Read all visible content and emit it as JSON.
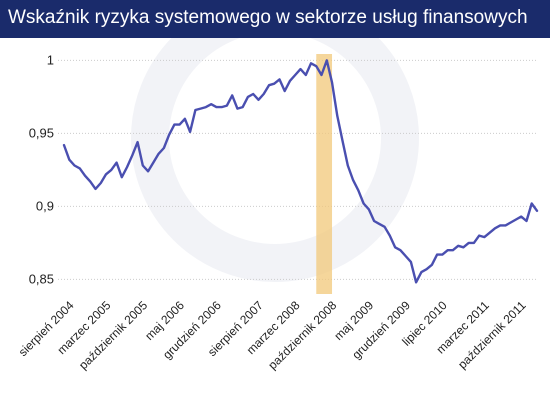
{
  "title": "Wskaźnik ryzyka systemowego w sektorze usług finansowych",
  "colors": {
    "header_bg": "#1a2b6b",
    "line": "#4a4fb0",
    "highlight": "#f2c87a",
    "grid": "#cccccc"
  },
  "chart_data": {
    "type": "line",
    "title": "Wskaźnik ryzyka systemowego w sektorze usług finansowych",
    "xlabel": "",
    "ylabel": "",
    "ylim": [
      0.84,
      1.003
    ],
    "y_ticks": [
      0.85,
      0.9,
      0.95,
      1
    ],
    "y_tick_labels": [
      "0,85",
      "0,9",
      "0,95",
      "1"
    ],
    "x_tick_labels": [
      "sierpień 2004",
      "marzec 2005",
      "październik 2005",
      "maj 2006",
      "grudzień 2006",
      "sierpień 2007",
      "marzec 2008",
      "październik 2008",
      "maj 2009",
      "grudzień 2009",
      "lipiec 2010",
      "marzec 2011",
      "październik 2011"
    ],
    "x_tick_dates": [
      "2004-08",
      "2005-03",
      "2005-10",
      "2006-05",
      "2006-12",
      "2007-08",
      "2008-03",
      "2008-10",
      "2009-05",
      "2009-12",
      "2010-07",
      "2011-03",
      "2011-10"
    ],
    "highlight_range": [
      "2008-06",
      "2008-09"
    ],
    "grid": true,
    "legend": "none",
    "series": [
      {
        "dates": [
          "2004-06",
          "2004-07",
          "2004-08",
          "2004-09",
          "2004-10",
          "2004-11",
          "2004-12",
          "2005-01",
          "2005-02",
          "2005-03",
          "2005-04",
          "2005-05",
          "2005-06",
          "2005-07",
          "2005-08",
          "2005-09",
          "2005-10",
          "2005-11",
          "2005-12",
          "2006-01",
          "2006-02",
          "2006-03",
          "2006-04",
          "2006-05",
          "2006-06",
          "2006-07",
          "2006-08",
          "2006-09",
          "2006-10",
          "2006-11",
          "2006-12",
          "2007-01",
          "2007-02",
          "2007-03",
          "2007-04",
          "2007-05",
          "2007-06",
          "2007-07",
          "2007-08",
          "2007-09",
          "2007-10",
          "2007-11",
          "2007-12",
          "2008-01",
          "2008-02",
          "2008-03",
          "2008-04",
          "2008-05",
          "2008-06",
          "2008-07",
          "2008-08",
          "2008-09",
          "2008-10",
          "2008-11",
          "2008-12",
          "2009-01",
          "2009-02",
          "2009-03",
          "2009-04",
          "2009-05",
          "2009-06",
          "2009-07",
          "2009-08",
          "2009-09",
          "2009-10",
          "2009-11",
          "2009-12",
          "2010-01",
          "2010-02",
          "2010-03",
          "2010-04",
          "2010-05",
          "2010-06",
          "2010-07",
          "2010-08",
          "2010-09",
          "2010-10",
          "2010-11",
          "2010-12",
          "2011-01",
          "2011-02",
          "2011-03",
          "2011-04",
          "2011-05",
          "2011-06",
          "2011-07",
          "2011-08",
          "2011-09",
          "2011-10",
          "2011-11",
          "2011-12"
        ],
        "values": [
          0.942,
          0.932,
          0.928,
          0.926,
          0.921,
          0.917,
          0.912,
          0.916,
          0.922,
          0.925,
          0.93,
          0.92,
          0.927,
          0.935,
          0.944,
          0.928,
          0.924,
          0.93,
          0.936,
          0.94,
          0.949,
          0.956,
          0.956,
          0.96,
          0.951,
          0.966,
          0.967,
          0.968,
          0.97,
          0.968,
          0.968,
          0.969,
          0.976,
          0.967,
          0.968,
          0.975,
          0.977,
          0.973,
          0.977,
          0.983,
          0.984,
          0.987,
          0.979,
          0.986,
          0.99,
          0.994,
          0.99,
          0.998,
          0.996,
          0.99,
          1.0,
          0.985,
          0.962,
          0.945,
          0.928,
          0.918,
          0.911,
          0.902,
          0.898,
          0.89,
          0.888,
          0.886,
          0.88,
          0.872,
          0.87,
          0.866,
          0.862,
          0.848,
          0.855,
          0.857,
          0.86,
          0.867,
          0.867,
          0.87,
          0.87,
          0.873,
          0.872,
          0.875,
          0.875,
          0.88,
          0.879,
          0.882,
          0.885,
          0.887,
          0.887,
          0.889,
          0.891,
          0.893,
          0.89,
          0.902,
          0.897
        ]
      }
    ]
  }
}
